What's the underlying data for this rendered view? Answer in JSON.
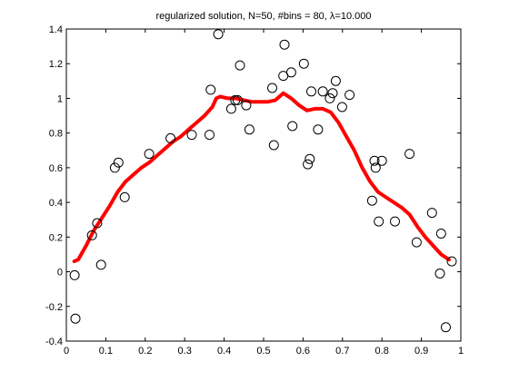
{
  "chart_data": {
    "type": "scatter",
    "title": "regularized solution, N=50, #bins = 80, λ=10.000",
    "xlabel": "",
    "ylabel": "",
    "xlim": [
      0,
      1
    ],
    "ylim": [
      -0.4,
      1.4
    ],
    "xticks": [
      0,
      0.1,
      0.2,
      0.3,
      0.4,
      0.5,
      0.6,
      0.7,
      0.8,
      0.9,
      1
    ],
    "xtick_labels": [
      "0",
      "0.1",
      "0.2",
      "0.3",
      "0.4",
      "0.5",
      "0.6",
      "0.7",
      "0.8",
      "0.9",
      "1"
    ],
    "yticks": [
      -0.4,
      -0.2,
      0,
      0.2,
      0.4,
      0.6,
      0.8,
      1,
      1.2,
      1.4
    ],
    "ytick_labels": [
      "-0.4",
      "-0.2",
      "0",
      "0.2",
      "0.4",
      "0.6",
      "0.8",
      "1",
      "1.2",
      "1.4"
    ],
    "grid": false,
    "series": [
      {
        "kind": "scatter",
        "marker": "open-circle",
        "color": "#000000",
        "x": [
          0.021,
          0.023,
          0.065,
          0.078,
          0.088,
          0.123,
          0.132,
          0.148,
          0.21,
          0.264,
          0.318,
          0.363,
          0.366,
          0.385,
          0.418,
          0.428,
          0.434,
          0.44,
          0.456,
          0.464,
          0.522,
          0.526,
          0.55,
          0.553,
          0.57,
          0.573,
          0.602,
          0.612,
          0.617,
          0.621,
          0.638,
          0.65,
          0.668,
          0.675,
          0.683,
          0.699,
          0.718,
          0.775,
          0.781,
          0.784,
          0.792,
          0.8,
          0.833,
          0.87,
          0.888,
          0.927,
          0.947,
          0.95,
          0.962,
          0.977
        ],
        "y": [
          -0.02,
          -0.27,
          0.21,
          0.28,
          0.04,
          0.6,
          0.63,
          0.43,
          0.68,
          0.77,
          0.79,
          0.79,
          1.05,
          1.37,
          0.94,
          0.99,
          0.99,
          1.19,
          0.96,
          0.82,
          1.06,
          0.73,
          1.13,
          1.31,
          1.15,
          0.84,
          1.2,
          0.62,
          0.65,
          1.04,
          0.82,
          1.04,
          1.0,
          1.03,
          1.1,
          0.95,
          1.02,
          0.41,
          0.64,
          0.6,
          0.29,
          0.64,
          0.29,
          0.68,
          0.17,
          0.34,
          -0.01,
          0.22,
          -0.32,
          0.06
        ]
      },
      {
        "kind": "line",
        "color": "#ff0000",
        "x": [
          0.02,
          0.03,
          0.05,
          0.07,
          0.09,
          0.11,
          0.13,
          0.15,
          0.17,
          0.19,
          0.21,
          0.23,
          0.25,
          0.27,
          0.29,
          0.31,
          0.33,
          0.35,
          0.37,
          0.38,
          0.39,
          0.41,
          0.43,
          0.45,
          0.47,
          0.49,
          0.51,
          0.53,
          0.55,
          0.57,
          0.59,
          0.61,
          0.63,
          0.65,
          0.67,
          0.69,
          0.71,
          0.73,
          0.75,
          0.77,
          0.79,
          0.81,
          0.83,
          0.85,
          0.87,
          0.89,
          0.91,
          0.93,
          0.95,
          0.97
        ],
        "y": [
          0.06,
          0.07,
          0.15,
          0.24,
          0.31,
          0.38,
          0.46,
          0.52,
          0.56,
          0.6,
          0.63,
          0.67,
          0.71,
          0.75,
          0.78,
          0.82,
          0.86,
          0.9,
          0.95,
          1.0,
          1.01,
          1.0,
          1.0,
          0.99,
          0.98,
          0.98,
          0.98,
          0.99,
          1.03,
          1.0,
          0.96,
          0.93,
          0.94,
          0.94,
          0.92,
          0.86,
          0.78,
          0.7,
          0.6,
          0.52,
          0.46,
          0.43,
          0.4,
          0.37,
          0.33,
          0.26,
          0.2,
          0.15,
          0.1,
          0.07
        ]
      }
    ]
  }
}
